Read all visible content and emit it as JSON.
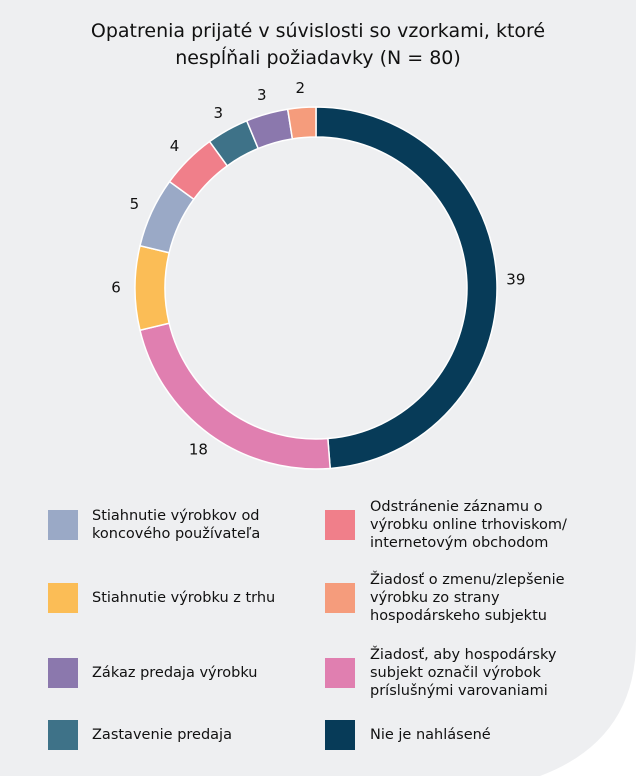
{
  "chart_data": {
    "type": "donut",
    "title": "Opatrenia prijaté v súvislosti so vzorkami, ktoré nespĺňali požiadavky (N = 80)",
    "categories": [
      "Nie je nahlásené",
      "Žiadosť, aby hospodársky subjekt označil výrobok príslušnými varovaniami",
      "Stiahnutie výrobku z trhu",
      "Stiahnutie výrobkov od koncového používateľa",
      "Odstránenie záznamu o výrobku online trhoviskom/ internetovým obchodom",
      "Zastavenie predaja",
      "Zákaz predaja výrobku",
      "Žiadosť o zmenu/zlepšenie výrobku zo strany hospodárskeho subjektu"
    ],
    "values": [
      39,
      18,
      6,
      5,
      4,
      3,
      3,
      2
    ],
    "colors": [
      "#073b58",
      "#e07fb0",
      "#fbbd56",
      "#9aa9c6",
      "#f07f8a",
      "#3e7288",
      "#8b78ad",
      "#f59c7c"
    ]
  }
}
